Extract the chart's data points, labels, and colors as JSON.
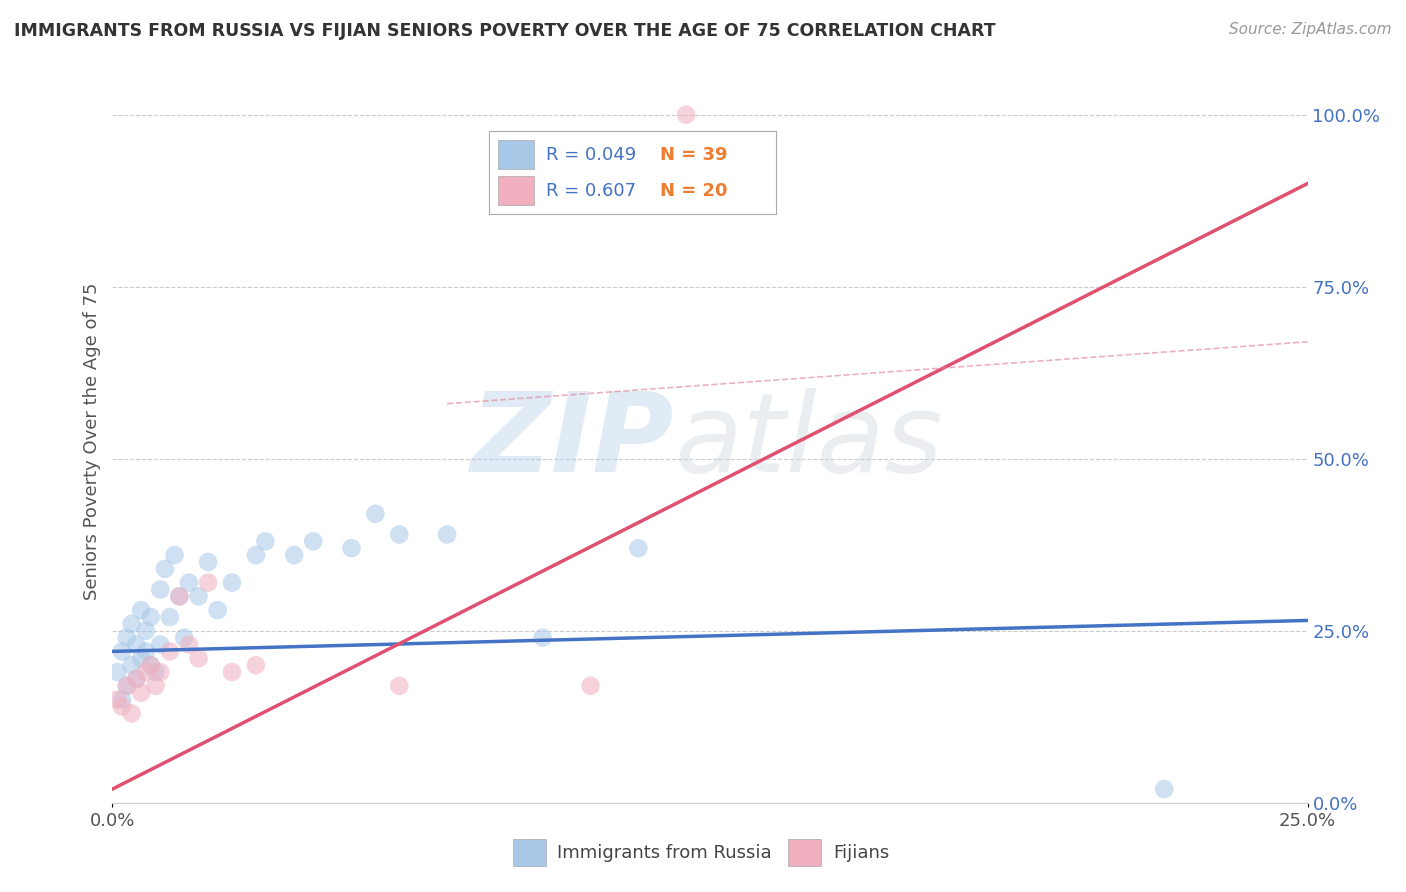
{
  "title": "IMMIGRANTS FROM RUSSIA VS FIJIAN SENIORS POVERTY OVER THE AGE OF 75 CORRELATION CHART",
  "source": "Source: ZipAtlas.com",
  "ylabel": "Seniors Poverty Over the Age of 75",
  "xlim": [
    0.0,
    0.25
  ],
  "ylim": [
    0.0,
    1.05
  ],
  "blue_scatter_x": [
    0.001,
    0.002,
    0.002,
    0.003,
    0.003,
    0.004,
    0.004,
    0.005,
    0.005,
    0.006,
    0.006,
    0.007,
    0.007,
    0.008,
    0.008,
    0.009,
    0.01,
    0.01,
    0.011,
    0.012,
    0.013,
    0.014,
    0.015,
    0.016,
    0.018,
    0.02,
    0.022,
    0.025,
    0.03,
    0.032,
    0.038,
    0.042,
    0.05,
    0.055,
    0.06,
    0.07,
    0.09,
    0.11,
    0.22
  ],
  "blue_scatter_y": [
    0.19,
    0.15,
    0.22,
    0.17,
    0.24,
    0.2,
    0.26,
    0.18,
    0.23,
    0.21,
    0.28,
    0.22,
    0.25,
    0.2,
    0.27,
    0.19,
    0.23,
    0.31,
    0.34,
    0.27,
    0.36,
    0.3,
    0.24,
    0.32,
    0.3,
    0.35,
    0.28,
    0.32,
    0.36,
    0.38,
    0.36,
    0.38,
    0.37,
    0.42,
    0.39,
    0.39,
    0.24,
    0.37,
    0.02
  ],
  "pink_scatter_x": [
    0.001,
    0.002,
    0.003,
    0.004,
    0.005,
    0.006,
    0.007,
    0.008,
    0.009,
    0.01,
    0.012,
    0.014,
    0.016,
    0.018,
    0.02,
    0.025,
    0.03,
    0.06,
    0.1,
    0.12
  ],
  "pink_scatter_y": [
    0.15,
    0.14,
    0.17,
    0.13,
    0.18,
    0.16,
    0.19,
    0.2,
    0.17,
    0.19,
    0.22,
    0.3,
    0.23,
    0.21,
    0.32,
    0.19,
    0.2,
    0.17,
    0.17,
    1.0
  ],
  "blue_line_x": [
    0.0,
    0.25
  ],
  "blue_line_y": [
    0.22,
    0.265
  ],
  "pink_line_x": [
    0.0,
    0.25
  ],
  "pink_line_y": [
    0.02,
    0.9
  ],
  "dashed_line_x": [
    0.07,
    0.25
  ],
  "dashed_line_y": [
    0.58,
    0.67
  ],
  "blue_color": "#a8c8e8",
  "pink_color": "#f0b0c0",
  "blue_line_color": "#4472c4",
  "pink_line_color": "#e05070",
  "dashed_line_color": "#e08090",
  "legend_R_color": "#4472c4",
  "legend_N_color": "#ed7d31",
  "scatter_size": 180,
  "scatter_alpha": 0.55,
  "background_color": "#ffffff",
  "grid_color": "#cccccc",
  "legend_x_label": "Immigrants from Russia",
  "legend_y_label": "Fijians"
}
